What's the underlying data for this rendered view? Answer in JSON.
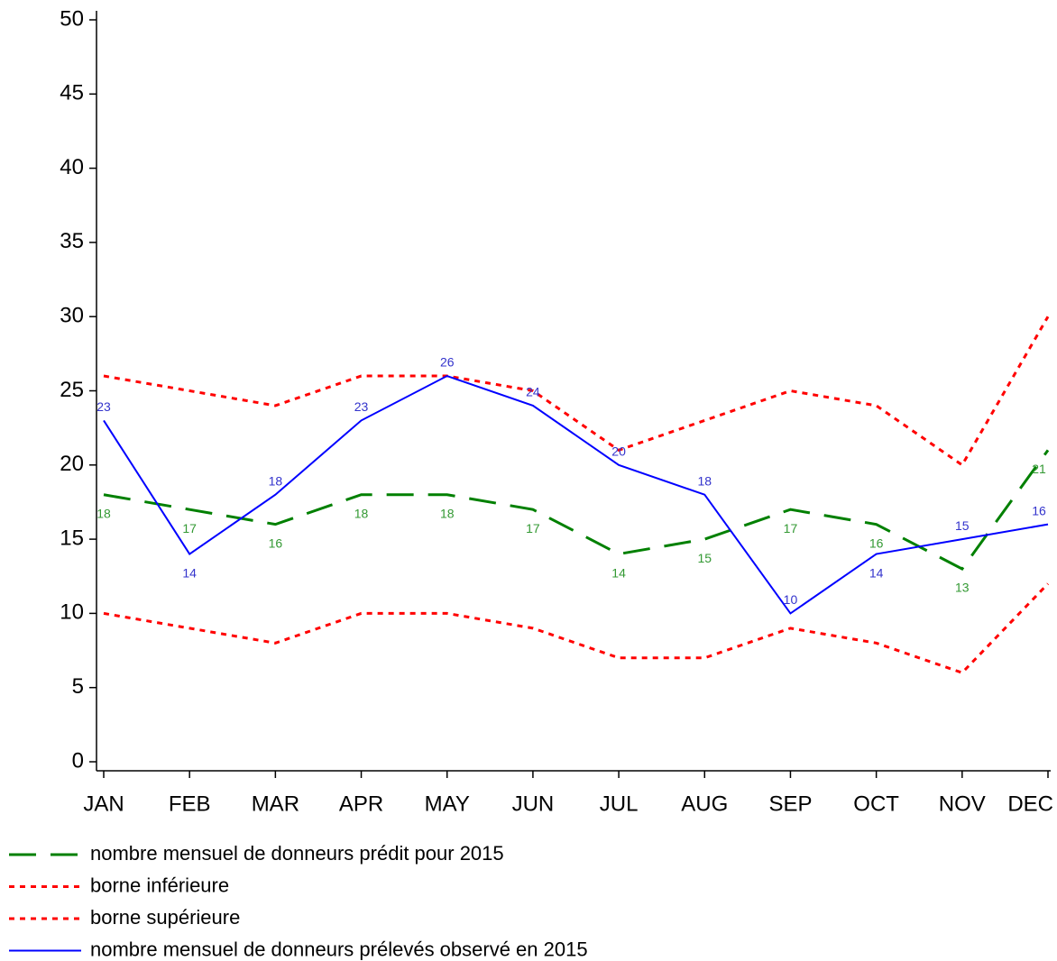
{
  "chart_data": {
    "type": "line",
    "categories": [
      "JAN",
      "FEB",
      "MAR",
      "APR",
      "MAY",
      "JUN",
      "JUL",
      "AUG",
      "SEP",
      "OCT",
      "NOV",
      "DEC"
    ],
    "series": [
      {
        "name": "nombre mensuel de donneurs prédit pour 2015",
        "color": "#008000",
        "line_style": "dashed",
        "data_labels": true,
        "values": [
          18,
          17,
          16,
          18,
          18,
          17,
          14,
          15,
          17,
          16,
          13,
          21
        ]
      },
      {
        "name": "borne inférieure",
        "color": "#ff0000",
        "line_style": "dotted",
        "data_labels": false,
        "values": [
          10,
          9,
          8,
          10,
          10,
          9,
          7,
          7,
          9,
          8,
          6,
          12
        ]
      },
      {
        "name": "borne supérieure",
        "color": "#ff0000",
        "line_style": "dotted",
        "data_labels": false,
        "values": [
          26,
          25,
          24,
          26,
          26,
          25,
          21,
          23,
          25,
          24,
          20,
          30
        ]
      },
      {
        "name": "nombre mensuel de donneurs prélevés observé en 2015",
        "color": "#0000ff",
        "line_style": "solid",
        "data_labels": true,
        "values": [
          23,
          14,
          18,
          23,
          26,
          24,
          20,
          18,
          10,
          14,
          15,
          16
        ]
      }
    ],
    "ylim": [
      0,
      50
    ],
    "yticks": [
      0,
      5,
      10,
      15,
      20,
      25,
      30,
      35,
      40,
      45,
      50
    ],
    "grid": false,
    "legend": "bottom"
  }
}
